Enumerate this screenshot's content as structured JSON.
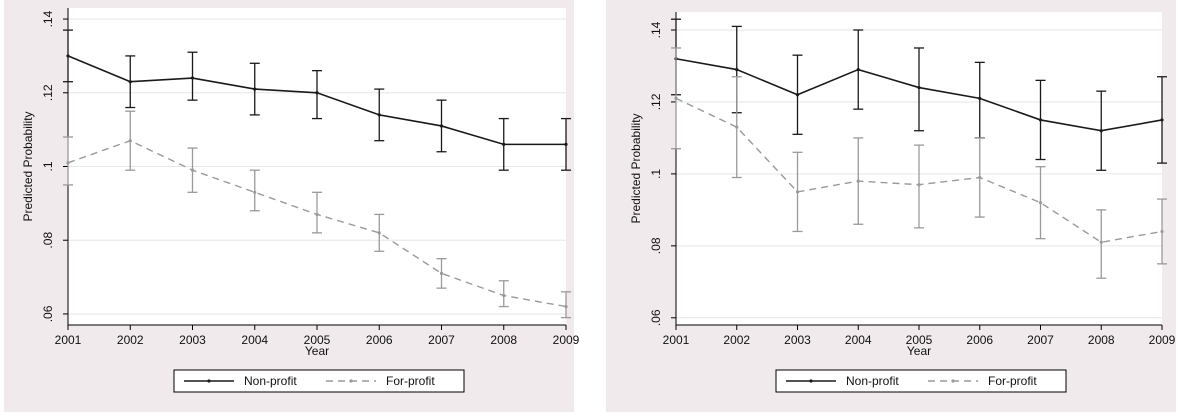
{
  "colors": {
    "panel_background": "#f0eaed",
    "plot_background": "#ffffff",
    "gridline": "#e6e6e6",
    "non_profit": "#1a1a1a",
    "for_profit": "#9a9a9a"
  },
  "chart_data": [
    {
      "type": "line",
      "title": "",
      "xlabel": "Year",
      "ylabel": "Predicted Probability",
      "x": [
        2001,
        2002,
        2003,
        2004,
        2005,
        2006,
        2007,
        2008,
        2009
      ],
      "xlim": [
        2001,
        2009
      ],
      "ylim": [
        0.057,
        0.143
      ],
      "yticks": [
        0.06,
        0.08,
        0.1,
        0.12,
        0.14
      ],
      "ytick_labels": [
        ".06",
        ".08",
        ".1",
        ".12",
        ".14"
      ],
      "grid": true,
      "legend_position": "bottom",
      "error_bars": true,
      "series": [
        {
          "name": "Non-profit",
          "line_style": "solid",
          "color": "#1a1a1a",
          "values": [
            0.13,
            0.123,
            0.124,
            0.121,
            0.12,
            0.114,
            0.111,
            0.106,
            0.106
          ],
          "lower": [
            0.123,
            0.116,
            0.118,
            0.114,
            0.113,
            0.107,
            0.104,
            0.099,
            0.099
          ],
          "upper": [
            0.137,
            0.13,
            0.131,
            0.128,
            0.126,
            0.121,
            0.118,
            0.113,
            0.113
          ]
        },
        {
          "name": "For-profit",
          "line_style": "dashed",
          "color": "#9a9a9a",
          "values": [
            0.101,
            0.107,
            0.099,
            0.093,
            0.087,
            0.082,
            0.071,
            0.065,
            0.062
          ],
          "lower": [
            0.095,
            0.099,
            0.093,
            0.088,
            0.082,
            0.077,
            0.067,
            0.062,
            0.059
          ],
          "upper": [
            0.108,
            0.115,
            0.105,
            0.099,
            0.093,
            0.087,
            0.075,
            0.069,
            0.066
          ]
        }
      ]
    },
    {
      "type": "line",
      "title": "",
      "xlabel": "Year",
      "ylabel": "Predicted Probability",
      "x": [
        2001,
        2002,
        2003,
        2004,
        2005,
        2006,
        2007,
        2008,
        2009
      ],
      "xlim": [
        2001,
        2009
      ],
      "ylim": [
        0.058,
        0.145
      ],
      "yticks": [
        0.06,
        0.08,
        0.1,
        0.12,
        0.14
      ],
      "ytick_labels": [
        ".06",
        ".08",
        ".1",
        ".12",
        ".14"
      ],
      "grid": true,
      "legend_position": "bottom",
      "error_bars": true,
      "series": [
        {
          "name": "Non-profit",
          "line_style": "solid",
          "color": "#1a1a1a",
          "values": [
            0.132,
            0.129,
            0.122,
            0.129,
            0.124,
            0.121,
            0.115,
            0.112,
            0.115
          ],
          "lower": [
            0.122,
            0.117,
            0.111,
            0.118,
            0.112,
            0.11,
            0.104,
            0.101,
            0.103
          ],
          "upper": [
            0.143,
            0.141,
            0.133,
            0.14,
            0.135,
            0.131,
            0.126,
            0.123,
            0.127
          ]
        },
        {
          "name": "For-profit",
          "line_style": "dashed",
          "color": "#9a9a9a",
          "values": [
            0.121,
            0.113,
            0.095,
            0.098,
            0.097,
            0.099,
            0.092,
            0.081,
            0.084
          ],
          "lower": [
            0.107,
            0.099,
            0.084,
            0.086,
            0.085,
            0.088,
            0.082,
            0.071,
            0.075
          ],
          "upper": [
            0.135,
            0.127,
            0.106,
            0.11,
            0.108,
            0.11,
            0.102,
            0.09,
            0.093
          ]
        }
      ]
    }
  ]
}
